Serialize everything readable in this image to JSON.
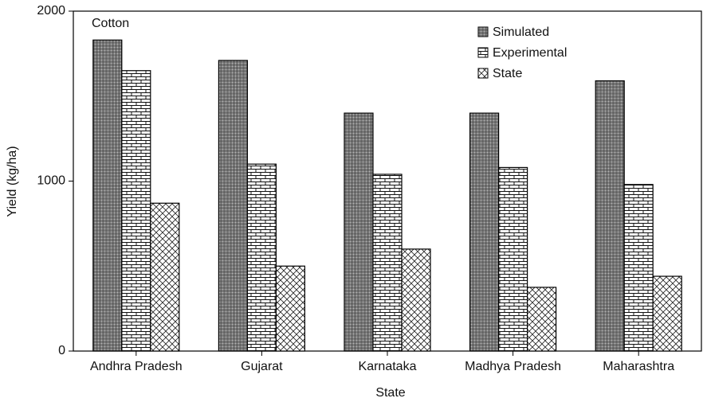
{
  "chart_data": {
    "type": "bar",
    "annotation": "Cotton",
    "x_label": "State",
    "y_label": "Yield (kg/ha)",
    "categories": [
      "Andhra Pradesh",
      "Gujarat",
      "Karnataka",
      "Madhya Pradesh",
      "Maharashtra"
    ],
    "series": [
      {
        "name": "Simulated",
        "color": "#000000",
        "values": [
          1830,
          1710,
          1400,
          1400,
          1590
        ]
      },
      {
        "name": "Experimental",
        "color": "#000000",
        "values": [
          1650,
          1100,
          1040,
          1080,
          980
        ]
      },
      {
        "name": "State",
        "color": "#000000",
        "values": [
          870,
          500,
          600,
          375,
          440
        ]
      }
    ],
    "ylim": [
      0,
      2000
    ],
    "yticks": [
      0,
      1000,
      2000
    ],
    "grid": false,
    "legend": "top-right"
  }
}
